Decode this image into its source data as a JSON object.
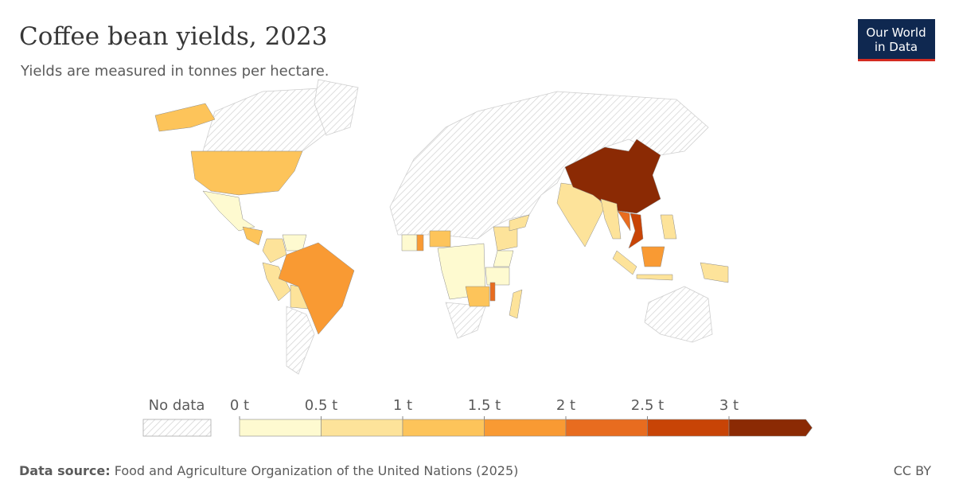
{
  "header": {
    "title": "Coffee bean yields, 2023",
    "subtitle": "Yields are measured in tonnes per hectare.",
    "logo": [
      "Our World",
      "in Data"
    ]
  },
  "map": {
    "type": "choropleth",
    "no_data_label": "No data",
    "legend": {
      "ticks": [
        {
          "value": 0,
          "label": "0 t"
        },
        {
          "value": 0.5,
          "label": "0.5 t"
        },
        {
          "value": 1,
          "label": "1 t"
        },
        {
          "value": 1.5,
          "label": "1.5 t"
        },
        {
          "value": 2,
          "label": "2 t"
        },
        {
          "value": 2.5,
          "label": "2.5 t"
        },
        {
          "value": 3,
          "label": "3 t"
        }
      ],
      "colors": [
        "#fefad0",
        "#fde39a",
        "#fdc45a",
        "#f99a33",
        "#e86c1f",
        "#c84406",
        "#8b2a04"
      ]
    },
    "values": [
      1.1,
      1.1,
      0.3,
      1.2,
      0.8,
      0.3,
      0.8,
      0.9,
      1.8,
      0.3,
      1.8,
      1.3,
      0.2,
      0.7,
      0.4,
      0.4,
      1.1,
      2.1,
      0.7,
      0.7,
      0.7,
      3.2,
      2.9,
      2.2,
      0.9,
      0.9,
      1.6,
      0.9,
      0.6,
      0.9
    ]
  },
  "footer": {
    "source_label": "Data source:",
    "source": "Food and Agriculture Organization of the United Nations (2025)",
    "license": "CC BY"
  }
}
